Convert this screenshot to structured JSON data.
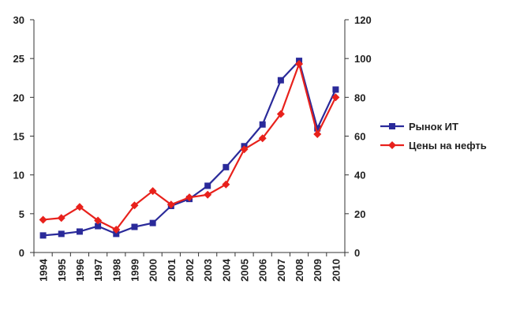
{
  "chart_data": {
    "type": "line",
    "categories": [
      "1994",
      "1995",
      "1996",
      "1997",
      "1998",
      "1999",
      "2000",
      "2001",
      "2002",
      "2003",
      "2004",
      "2005",
      "2006",
      "2007",
      "2008",
      "2009",
      "2010"
    ],
    "series": [
      {
        "name": "Рынок ИТ",
        "axis": "left",
        "color": "#2a2a9a",
        "marker": "square",
        "values": [
          2.2,
          2.4,
          2.7,
          3.4,
          2.4,
          3.3,
          3.8,
          6.0,
          6.9,
          8.6,
          11.0,
          13.7,
          16.5,
          22.2,
          24.7,
          16.0,
          21.0
        ]
      },
      {
        "name": "Цены на нефть",
        "axis": "right",
        "color": "#e8211c",
        "marker": "diamond",
        "values": [
          16.9,
          17.8,
          23.5,
          16.5,
          11.8,
          24.3,
          31.7,
          24.7,
          28.4,
          29.8,
          35.1,
          53.2,
          58.9,
          71.4,
          97.2,
          61.0,
          80.0
        ]
      }
    ],
    "y_left": {
      "min": 0,
      "max": 30,
      "step": 5,
      "ticks": [
        "0",
        "5",
        "10",
        "15",
        "20",
        "25",
        "30"
      ]
    },
    "y_right": {
      "min": 0,
      "max": 120,
      "step": 20,
      "ticks": [
        "0",
        "20",
        "40",
        "60",
        "80",
        "100",
        "120"
      ]
    },
    "grid": false,
    "legend_position": "right"
  }
}
